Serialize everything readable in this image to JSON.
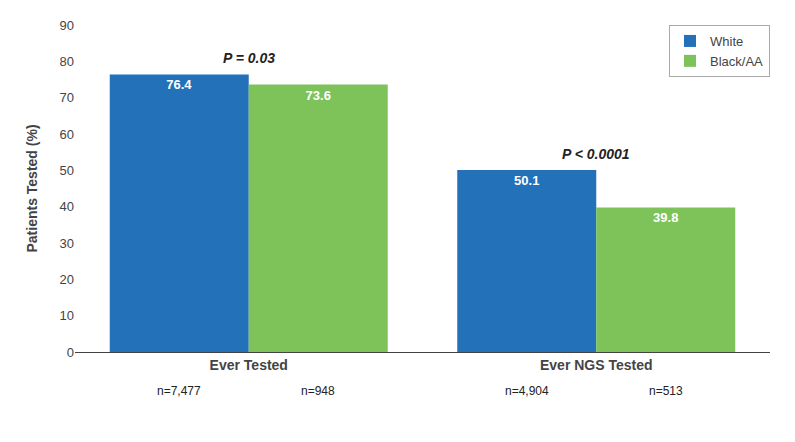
{
  "chart_data": {
    "type": "bar",
    "categories": [
      "Ever Tested",
      "Ever NGS Tested"
    ],
    "series": [
      {
        "name": "White",
        "color": "#2372B9",
        "values": [
          76.4,
          50.1
        ]
      },
      {
        "name": "Black/AA",
        "color": "#7DC35A",
        "values": [
          73.6,
          39.8
        ]
      }
    ],
    "ylabel": "Patients Tested (%)",
    "ylim": [
      0,
      90
    ],
    "yticks": [
      0,
      10,
      20,
      30,
      40,
      50,
      60,
      70,
      80,
      90
    ],
    "grid": false,
    "legend": "upper right",
    "data_labels": true,
    "annotations": [
      {
        "text": "P = 0.03",
        "category": "Ever Tested"
      },
      {
        "text": "P < 0.0001",
        "category": "Ever NGS Tested"
      },
      {
        "text": "n=7,477",
        "category": "Ever Tested",
        "series": "White"
      },
      {
        "text": "n=948",
        "category": "Ever Tested",
        "series": "Black/AA"
      },
      {
        "text": "n=4,904",
        "category": "Ever NGS Tested",
        "series": "White"
      },
      {
        "text": "n=513",
        "category": "Ever NGS Tested",
        "series": "Black/AA"
      }
    ]
  }
}
